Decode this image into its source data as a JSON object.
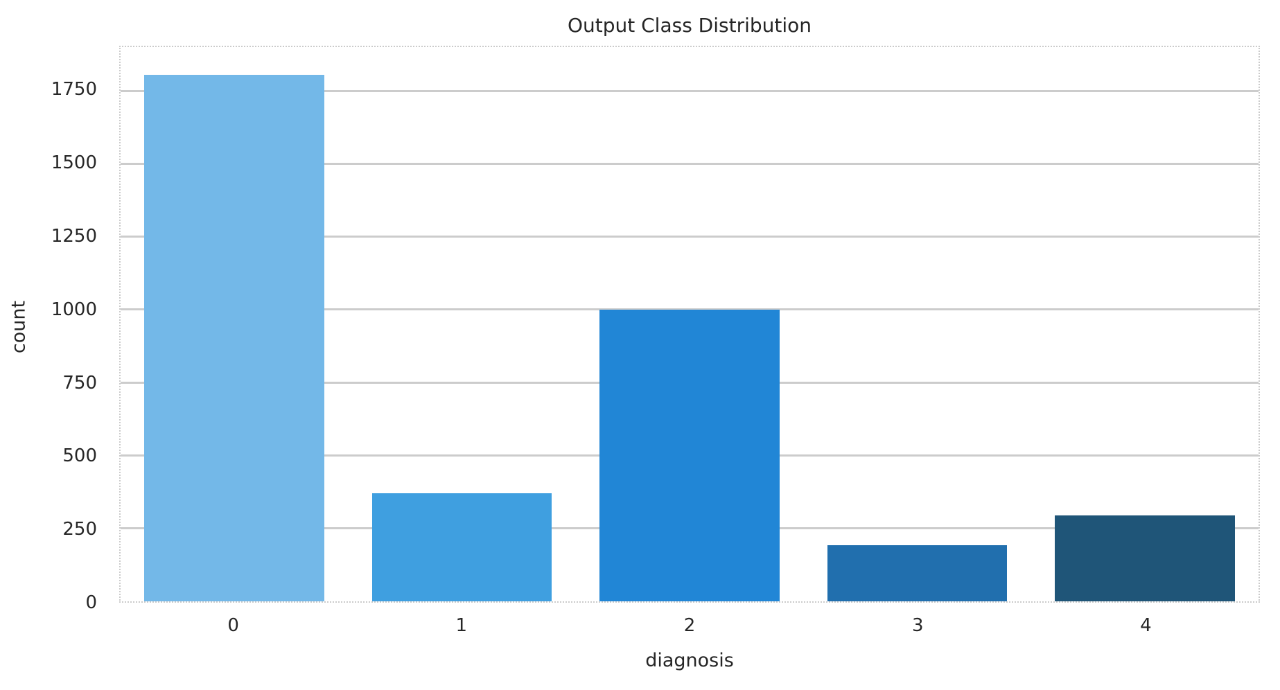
{
  "chart_data": {
    "type": "bar",
    "title": "Output Class Distribution",
    "xlabel": "diagnosis",
    "ylabel": "count",
    "categories": [
      "0",
      "1",
      "2",
      "3",
      "4"
    ],
    "values": [
      1805,
      370,
      999,
      193,
      295
    ],
    "bar_colors": [
      "#73b8e8",
      "#3f9fe0",
      "#2186d6",
      "#216fae",
      "#1f5578"
    ],
    "yticks": [
      0,
      250,
      500,
      750,
      1000,
      1250,
      1500,
      1750
    ],
    "ylim": [
      0,
      1900
    ],
    "grid": true,
    "legend_position": "none",
    "grid_color": "#cccccc",
    "spine_color": "#cbcbcb",
    "text_color": "#262626",
    "background_color": "#ffffff"
  }
}
